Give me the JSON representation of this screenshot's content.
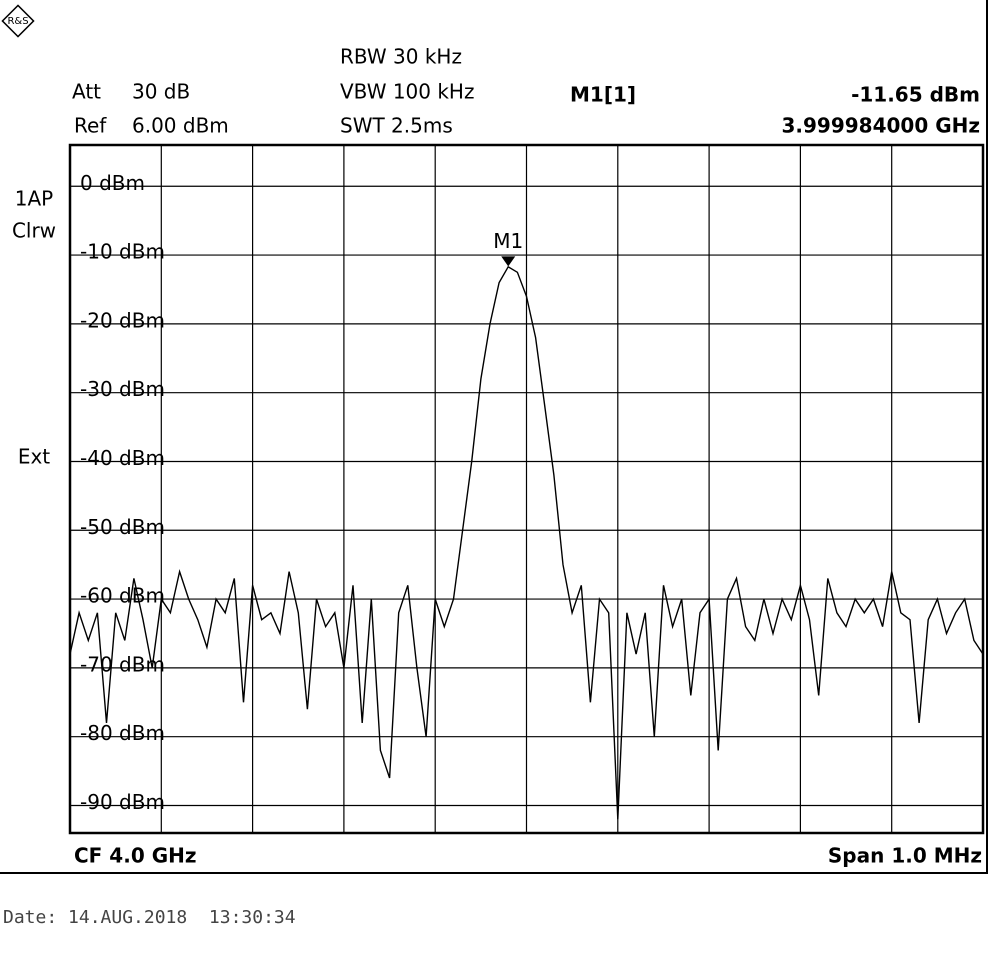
{
  "chart_data": {
    "type": "line",
    "settings": {
      "att_label": "Att",
      "att": "30 dB",
      "ref_label": "Ref",
      "ref": "6.00 dBm",
      "rbw": "RBW 30 kHz",
      "vbw": "VBW 100 kHz",
      "swt": "SWT 2.5ms"
    },
    "trace_labels": [
      "1AP",
      "Clrw",
      "Ext"
    ],
    "marker": {
      "name": "M1",
      "label": "M1[1]",
      "value": -11.65,
      "value_label": "-11.65 dBm",
      "frequency": "3.999984000 GHz"
    },
    "center": "CF 4.0 GHz",
    "span": "Span 1.0 MHz",
    "date": "Date: 14.AUG.2018  13:30:34",
    "ylim": [
      -94,
      6
    ],
    "yticks": [
      {
        "value": 0,
        "label": "0 dBm"
      },
      {
        "value": -10,
        "label": "-10 dBm"
      },
      {
        "value": -20,
        "label": "-20 dBm"
      },
      {
        "value": -30,
        "label": "-30 dBm"
      },
      {
        "value": -40,
        "label": "-40 dBm"
      },
      {
        "value": -50,
        "label": "-50 dBm"
      },
      {
        "value": -60,
        "label": "-60 dBm"
      },
      {
        "value": -70,
        "label": "-70 dBm"
      },
      {
        "value": -80,
        "label": "-80 dBm"
      },
      {
        "value": -90,
        "label": "-90 dBm"
      }
    ],
    "grid": true,
    "color": "#000000",
    "values": [
      -68,
      -62,
      -66,
      -62,
      -78,
      -62,
      -66,
      -57,
      -63,
      -70,
      -60,
      -62,
      -56,
      -60,
      -63,
      -67,
      -60,
      -62,
      -57,
      -75,
      -58,
      -63,
      -62,
      -65,
      -56,
      -62,
      -76,
      -60,
      -64,
      -62,
      -70,
      -58,
      -78,
      -60,
      -82,
      -86,
      -62,
      -58,
      -70,
      -80,
      -60,
      -64,
      -60,
      -50,
      -40,
      -28,
      -20,
      -14,
      -11.7,
      -12.5,
      -16,
      -22,
      -32,
      -42,
      -55,
      -62,
      -58,
      -75,
      -60,
      -62,
      -92,
      -62,
      -68,
      -62,
      -80,
      -58,
      -64,
      -60,
      -74,
      -62,
      -60,
      -82,
      -60,
      -57,
      -64,
      -66,
      -60,
      -65,
      -60,
      -63,
      -58,
      -63,
      -74,
      -57,
      -62,
      -64,
      -60,
      -62,
      -60,
      -64,
      -56,
      -62,
      -63,
      -78,
      -63,
      -60,
      -65,
      -62,
      -60,
      -66,
      -68
    ]
  }
}
